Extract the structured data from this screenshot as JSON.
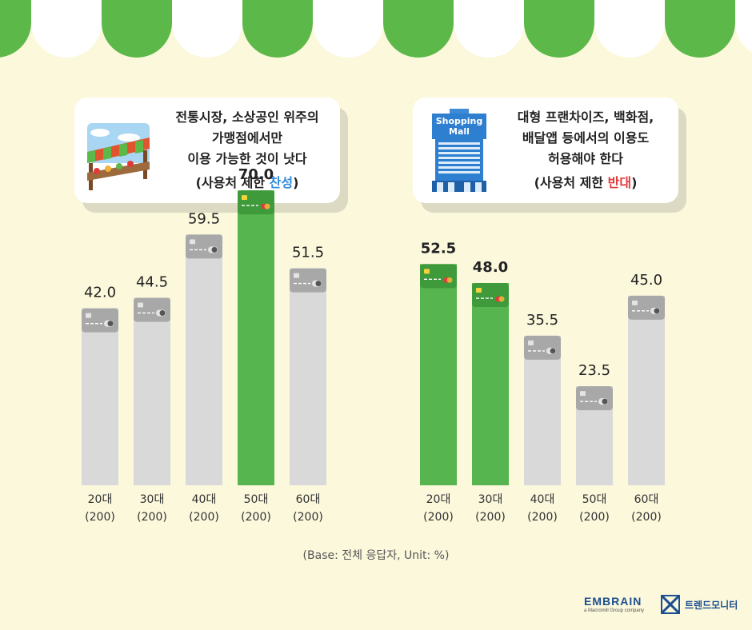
{
  "cards": {
    "left": {
      "lines": [
        "전통시장, 소상공인 위주의",
        "가맹점에서만",
        "이용 가능한 것이 낫다"
      ],
      "paren_open": "(사용처 제한 ",
      "highlight": "찬성",
      "paren_close": ")",
      "highlight_color": "#2f8be0",
      "icon": "market-stall-icon"
    },
    "right": {
      "lines": [
        "대형 프랜차이즈, 백화점,",
        "배달앱 등에서의 이용도",
        "허용해야 한다"
      ],
      "paren_open": "(사용처 제한 ",
      "highlight": "반대",
      "paren_close": ")",
      "highlight_color": "#e23a3a",
      "icon": "shopping-mall-icon",
      "icon_text": [
        "Shopping",
        "Mall"
      ]
    }
  },
  "colors": {
    "awning_green": "#5cb848",
    "highlight_bar": "#56b54e",
    "normal_bar": "#d9d9d9",
    "background": "#fbf8dc"
  },
  "chart_data": [
    {
      "type": "bar",
      "name": "left",
      "categories": [
        "20대",
        "30대",
        "40대",
        "50대",
        "60대"
      ],
      "sublabels": [
        "(200)",
        "(200)",
        "(200)",
        "(200)",
        "(200)"
      ],
      "values": [
        42.0,
        44.5,
        59.5,
        70.0,
        51.5
      ],
      "labels": [
        "42.0",
        "44.5",
        "59.5",
        "70.0",
        "51.5"
      ],
      "highlight": [
        false,
        false,
        false,
        true,
        false
      ],
      "ylim": [
        0,
        100
      ]
    },
    {
      "type": "bar",
      "name": "right",
      "categories": [
        "20대",
        "30대",
        "40대",
        "50대",
        "60대"
      ],
      "sublabels": [
        "(200)",
        "(200)",
        "(200)",
        "(200)",
        "(200)"
      ],
      "values": [
        52.5,
        48.0,
        35.5,
        23.5,
        45.0
      ],
      "labels": [
        "52.5",
        "48.0",
        "35.5",
        "23.5",
        "45.0"
      ],
      "highlight": [
        true,
        true,
        false,
        false,
        false
      ],
      "ylim": [
        0,
        100
      ]
    }
  ],
  "footnote": "(Base: 전체 응답자, Unit: %)",
  "brand": {
    "embrain": "EMBRAIN",
    "embrain_sub": "a Macromill Group company",
    "trendmonitor": "트렌드모니터"
  }
}
